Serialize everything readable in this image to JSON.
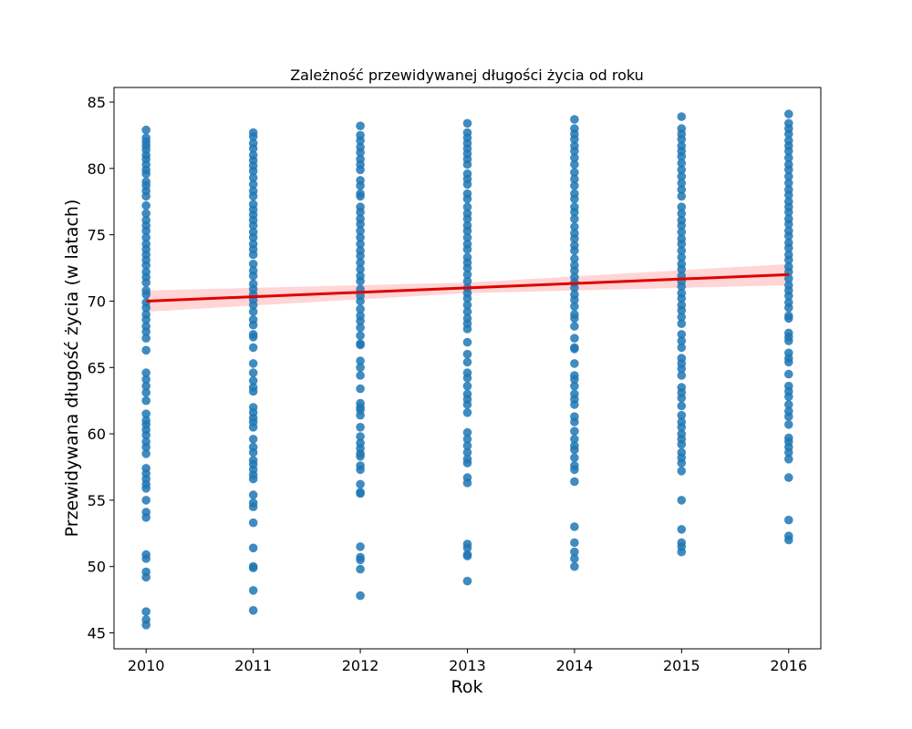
{
  "chart_data": {
    "type": "scatter",
    "title": "Zależność przewidywanej długości życia od roku",
    "xlabel": "Rok",
    "ylabel": "Przewidywana długość życia (w latach)",
    "xlim": [
      2009.7,
      2016.3
    ],
    "ylim": [
      43.8,
      86.1
    ],
    "x_ticks": [
      2010,
      2011,
      2012,
      2013,
      2014,
      2015,
      2016
    ],
    "y_ticks": [
      45,
      50,
      55,
      60,
      65,
      70,
      75,
      80,
      85
    ],
    "grid": false,
    "colors": {
      "points": "#1f77b4",
      "regression": "#e00000",
      "band": "#ffb3b3"
    },
    "series": [
      {
        "x": 2010,
        "values": [
          82.9,
          82.3,
          82.0,
          81.7,
          81.4,
          81.0,
          80.7,
          80.3,
          79.9,
          79.6,
          79.0,
          78.7,
          78.3,
          77.9,
          77.2,
          76.6,
          76.1,
          75.7,
          75.3,
          74.8,
          74.3,
          73.9,
          73.5,
          73.1,
          72.7,
          72.2,
          71.8,
          71.4,
          70.8,
          70.5,
          69.9,
          69.5,
          69.0,
          68.6,
          68.1,
          67.7,
          67.2,
          66.3,
          64.6,
          64.1,
          63.6,
          63.1,
          62.5,
          61.5,
          61.0,
          60.7,
          60.3,
          59.9,
          59.4,
          59.0,
          58.5,
          57.4,
          57.0,
          56.6,
          56.2,
          55.9,
          55.0,
          54.1,
          53.7,
          50.9,
          50.6,
          49.6,
          49.2,
          46.6,
          46.0,
          45.6
        ]
      },
      {
        "x": 2011,
        "values": [
          82.7,
          82.4,
          81.9,
          81.5,
          81.0,
          80.6,
          80.2,
          79.8,
          79.3,
          78.8,
          78.3,
          77.9,
          77.3,
          76.9,
          76.5,
          76.1,
          75.7,
          75.2,
          74.8,
          74.3,
          73.9,
          73.5,
          72.8,
          72.3,
          71.9,
          71.3,
          70.9,
          70.5,
          70.1,
          69.7,
          69.2,
          68.6,
          68.2,
          67.5,
          67.3,
          66.5,
          65.3,
          64.6,
          64.0,
          63.5,
          63.2,
          62.0,
          61.6,
          61.2,
          60.9,
          60.5,
          59.6,
          59.0,
          58.6,
          58.0,
          57.7,
          57.3,
          56.9,
          56.6,
          55.4,
          54.8,
          54.5,
          53.3,
          51.4,
          50.0,
          49.9,
          48.2,
          46.7
        ]
      },
      {
        "x": 2012,
        "values": [
          83.2,
          82.5,
          82.1,
          81.6,
          81.2,
          80.7,
          80.3,
          79.9,
          79.1,
          78.7,
          78.1,
          77.9,
          77.1,
          76.7,
          76.2,
          75.8,
          75.3,
          74.8,
          74.3,
          73.8,
          73.4,
          72.9,
          72.4,
          71.9,
          71.5,
          70.9,
          70.4,
          70.0,
          69.4,
          68.9,
          68.5,
          68.0,
          67.4,
          66.8,
          66.7,
          65.5,
          65.0,
          64.4,
          63.4,
          62.3,
          62.0,
          61.8,
          61.4,
          60.5,
          59.8,
          59.3,
          58.9,
          58.5,
          58.3,
          57.6,
          57.3,
          56.2,
          55.6,
          55.5,
          51.5,
          50.7,
          50.5,
          49.8,
          47.8
        ]
      },
      {
        "x": 2013,
        "values": [
          83.4,
          82.7,
          82.3,
          81.9,
          81.5,
          81.1,
          80.7,
          80.3,
          79.6,
          79.2,
          78.8,
          78.1,
          77.7,
          77.1,
          76.6,
          76.2,
          75.7,
          75.3,
          74.8,
          74.3,
          73.9,
          73.3,
          72.9,
          72.5,
          72.0,
          71.5,
          71.0,
          70.6,
          70.2,
          69.7,
          69.2,
          68.7,
          68.3,
          67.9,
          66.9,
          66.0,
          65.4,
          64.6,
          64.2,
          63.6,
          63.0,
          62.6,
          62.2,
          61.6,
          60.1,
          59.6,
          59.1,
          58.6,
          58.1,
          57.8,
          56.7,
          56.3,
          51.7,
          51.4,
          50.9,
          50.8,
          48.9
        ]
      },
      {
        "x": 2014,
        "values": [
          83.7,
          83.0,
          82.6,
          82.2,
          81.7,
          81.3,
          80.8,
          80.3,
          79.7,
          79.2,
          78.7,
          78.1,
          77.7,
          77.1,
          76.7,
          76.2,
          75.6,
          75.1,
          74.7,
          74.2,
          73.8,
          73.2,
          72.7,
          72.3,
          71.8,
          71.4,
          71.0,
          70.5,
          70.1,
          69.6,
          69.0,
          68.7,
          68.1,
          67.2,
          66.5,
          66.4,
          65.3,
          64.4,
          64.1,
          63.6,
          63.0,
          62.6,
          62.2,
          61.3,
          60.9,
          60.2,
          59.6,
          59.1,
          58.8,
          58.2,
          57.6,
          57.3,
          56.4,
          53.0,
          51.8,
          51.1,
          50.6,
          50.0
        ]
      },
      {
        "x": 2015,
        "values": [
          83.9,
          83.0,
          82.6,
          82.2,
          81.7,
          81.3,
          80.9,
          80.4,
          79.9,
          79.4,
          78.9,
          78.4,
          77.9,
          77.1,
          76.6,
          76.1,
          75.7,
          75.2,
          74.7,
          74.3,
          73.8,
          73.3,
          72.8,
          72.4,
          71.9,
          71.5,
          71.1,
          70.6,
          70.2,
          69.7,
          69.3,
          68.8,
          68.3,
          67.5,
          67.0,
          66.5,
          65.7,
          65.3,
          64.9,
          64.4,
          63.5,
          63.1,
          62.7,
          62.1,
          61.4,
          60.9,
          60.5,
          60.0,
          59.6,
          59.2,
          58.6,
          58.2,
          57.8,
          57.2,
          55.0,
          52.8,
          51.8,
          51.5,
          51.1
        ]
      },
      {
        "x": 2016,
        "values": [
          84.1,
          83.4,
          83.0,
          82.6,
          82.1,
          81.7,
          81.3,
          80.8,
          80.3,
          79.9,
          79.4,
          78.9,
          78.4,
          78.0,
          77.5,
          77.1,
          76.7,
          76.2,
          75.8,
          75.3,
          74.9,
          74.4,
          74.0,
          73.5,
          73.1,
          72.6,
          72.2,
          71.7,
          71.2,
          70.8,
          70.4,
          69.9,
          69.5,
          68.9,
          68.7,
          67.6,
          67.3,
          67.0,
          66.1,
          65.7,
          65.4,
          64.5,
          63.6,
          63.2,
          62.8,
          62.2,
          61.7,
          61.3,
          60.7,
          59.7,
          59.4,
          59.0,
          58.6,
          58.1,
          56.7,
          53.5,
          52.3,
          52.0
        ]
      }
    ],
    "regression": {
      "x": [
        2010,
        2016
      ],
      "y": [
        70.0,
        72.0
      ]
    },
    "ci_band": {
      "x": [
        2010,
        2013,
        2016
      ],
      "lower": [
        69.2,
        70.6,
        71.2
      ],
      "upper": [
        70.8,
        71.4,
        72.8
      ]
    }
  }
}
